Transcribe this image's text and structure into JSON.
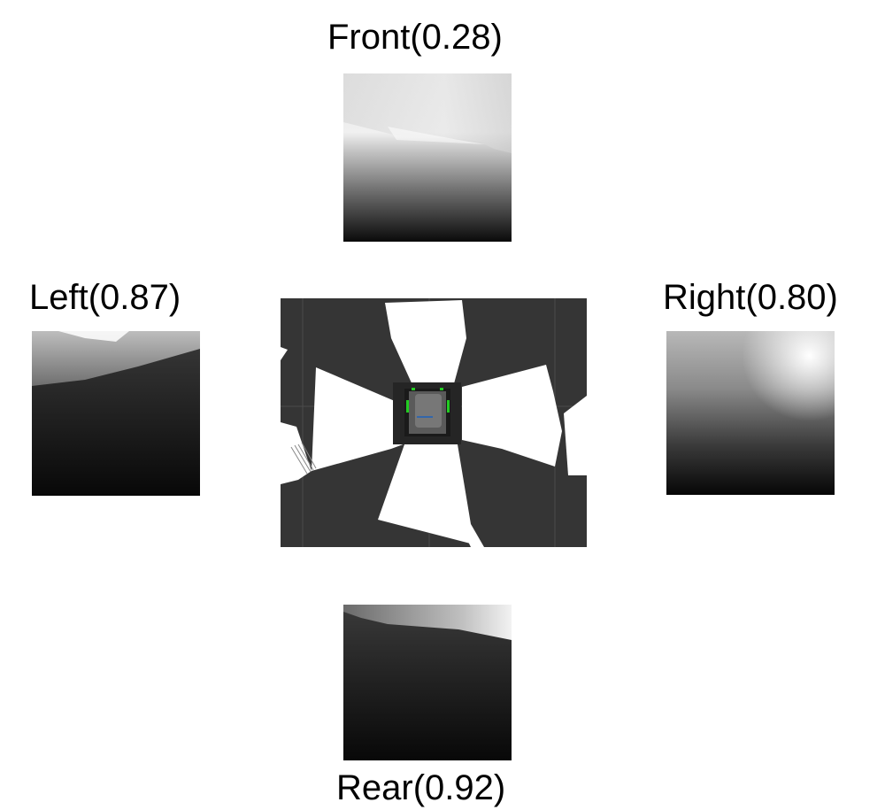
{
  "views": {
    "front": {
      "label": "Front(0.28)",
      "direction": "Front",
      "score": 0.28
    },
    "left": {
      "label": "Left(0.87)",
      "direction": "Left",
      "score": 0.87
    },
    "right": {
      "label": "Right(0.80)",
      "direction": "Right",
      "score": 0.8
    },
    "rear": {
      "label": "Rear(0.92)",
      "direction": "Rear",
      "score": 0.92
    }
  },
  "colors": {
    "map_floor": "#353535",
    "map_free": "#ffffff",
    "robot_body": "#6a6a6a",
    "robot_wheels": "#22cc22",
    "robot_accent": "#3366aa"
  }
}
